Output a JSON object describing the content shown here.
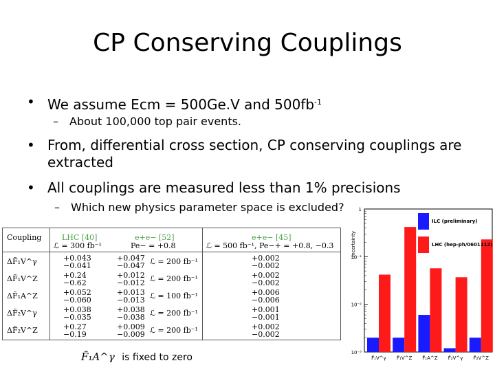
{
  "title": "CP Conserving Couplings",
  "bullets": {
    "b1_prefix": "We assume Ecm = 500Ge.V and 500fb",
    "b1_sup": "-1",
    "b1_sub": "About 100,000 top pair events.",
    "b2_line1": "From, differential cross section, CP conserving couplings are",
    "b2_line2": "extracted",
    "b3": "All couplings are measured less than 1% precisions",
    "b3_sub": "Which new physics parameter space is excluded?"
  },
  "table": {
    "headers": [
      "Coupling",
      "LHC [40]",
      "e+e− [52]",
      "e+e− [45]"
    ],
    "subheaders": [
      "ℒ = 300 fb⁻¹",
      "Pe− = +0.8",
      "ℒ = 500 fb⁻¹, Pe−+ = +0.8, −0.3"
    ],
    "rows": [
      {
        "coupling": "ΔF̃₁V^γ",
        "lhc": [
          "+0.043",
          "−0.041"
        ],
        "ee1": [
          "+0.047",
          "−0.047"
        ],
        "lumi": "ℒ = 200 fb⁻¹",
        "ee2": [
          "+0.002",
          "−0.002"
        ]
      },
      {
        "coupling": "ΔF̃₁V^Z",
        "lhc": [
          "+0.24",
          "−0.62"
        ],
        "ee1": [
          "+0.012",
          "−0.012"
        ],
        "lumi": "ℒ = 200 fb⁻¹",
        "ee2": [
          "+0.002",
          "−0.002"
        ]
      },
      {
        "coupling": "ΔF̃₁A^Z",
        "lhc": [
          "+0.052",
          "−0.060"
        ],
        "ee1": [
          "+0.013",
          "−0.013"
        ],
        "lumi": "ℒ = 100 fb⁻¹",
        "ee2": [
          "+0.006",
          "−0.006"
        ]
      },
      {
        "coupling": "ΔF̃₂V^γ",
        "lhc": [
          "+0.038",
          "−0.035"
        ],
        "ee1": [
          "+0.038",
          "−0.038"
        ],
        "lumi": "ℒ = 200 fb⁻¹",
        "ee2": [
          "+0.001",
          "−0.001"
        ]
      },
      {
        "coupling": "ΔF̃₂V^Z",
        "lhc": [
          "+0.27",
          "−0.19"
        ],
        "ee1": [
          "+0.009",
          "−0.009"
        ],
        "lumi": "ℒ = 200 fb⁻¹",
        "ee2": [
          "+0.002",
          "−0.002"
        ]
      }
    ]
  },
  "chart_data": {
    "type": "bar",
    "ylabel": "Uncertainty",
    "yscale": "log",
    "ylim": [
      0.001,
      1
    ],
    "yticks": [
      "1",
      "10⁻¹",
      "10⁻²",
      "10⁻³"
    ],
    "categories": [
      "F̃₁V^γ",
      "F̃₁V^Z",
      "F̃₁A^Z",
      "F̃₂V^γ",
      "F̃₂V^Z"
    ],
    "series": [
      {
        "name": "ILC (preliminary)",
        "color": "#1a1aff",
        "values": [
          0.002,
          0.002,
          0.006,
          0.0012,
          0.002
        ]
      },
      {
        "name": "LHC (hep-ph/0601112)",
        "color": "#ff1a1a",
        "values": [
          0.042,
          0.42,
          0.057,
          0.037,
          0.23
        ]
      }
    ]
  },
  "footnote": {
    "symbol": "F̃₁A^γ",
    "text": "is fixed to zero"
  }
}
